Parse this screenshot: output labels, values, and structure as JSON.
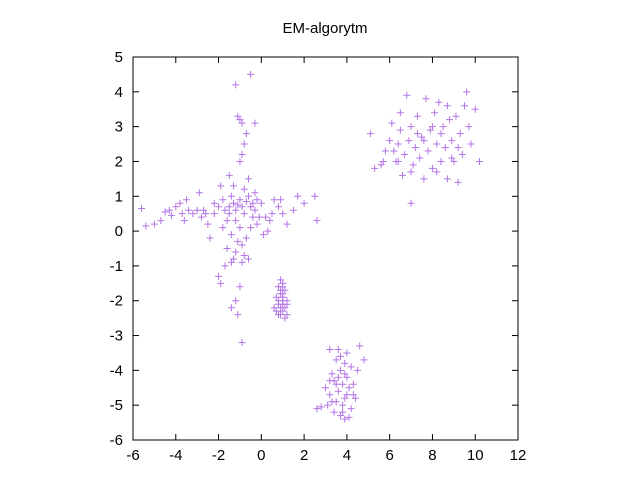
{
  "chart_data": {
    "type": "scatter",
    "title": "EM-algorytm",
    "xlabel": "",
    "ylabel": "",
    "xlim": [
      -6,
      12
    ],
    "ylim": [
      -6,
      5
    ],
    "xticks": [
      -6,
      -4,
      -2,
      0,
      2,
      4,
      6,
      8,
      10,
      12
    ],
    "yticks": [
      -6,
      -5,
      -4,
      -3,
      -2,
      -1,
      0,
      1,
      2,
      3,
      4,
      5
    ],
    "grid": false,
    "legend": "none",
    "marker": "+",
    "color": "#b475e8",
    "series": [
      {
        "points": [
          [
            -5.6,
            0.65
          ],
          [
            -5.4,
            0.15
          ],
          [
            -5.0,
            0.2
          ],
          [
            -4.7,
            0.3
          ],
          [
            -4.5,
            0.55
          ],
          [
            -4.3,
            0.6
          ],
          [
            -4.2,
            0.45
          ],
          [
            -4.0,
            0.7
          ],
          [
            -3.8,
            0.8
          ],
          [
            -3.7,
            0.5
          ],
          [
            -3.6,
            0.3
          ],
          [
            -3.4,
            0.6
          ],
          [
            -3.2,
            0.5
          ],
          [
            -3.0,
            0.6
          ],
          [
            -2.9,
            1.1
          ],
          [
            -2.8,
            0.4
          ],
          [
            -2.6,
            0.5
          ],
          [
            -2.5,
            0.2
          ],
          [
            -2.4,
            -0.2
          ],
          [
            -2.2,
            0.5
          ],
          [
            -2.0,
            0.7
          ],
          [
            -1.9,
            1.3
          ],
          [
            -1.8,
            0.9
          ],
          [
            -1.7,
            0.6
          ],
          [
            -1.6,
            0.3
          ],
          [
            -1.5,
            0.7
          ],
          [
            -1.4,
            1.0
          ],
          [
            -1.3,
            0.8
          ],
          [
            -1.2,
            0.6
          ],
          [
            -1.1,
            0.75
          ],
          [
            -1.0,
            0.9
          ],
          [
            -0.9,
            0.7
          ],
          [
            -0.8,
            0.5
          ],
          [
            -0.7,
            0.85
          ],
          [
            -0.6,
            1.0
          ],
          [
            -0.5,
            0.7
          ],
          [
            -0.4,
            0.8
          ],
          [
            -0.3,
            0.6
          ],
          [
            -0.2,
            0.9
          ],
          [
            0.0,
            0.8
          ],
          [
            0.2,
            0.4
          ],
          [
            0.4,
            0.3
          ],
          [
            0.6,
            0.9
          ],
          [
            0.8,
            0.7
          ],
          [
            1.0,
            0.5
          ],
          [
            1.2,
            0.2
          ],
          [
            1.5,
            0.6
          ],
          [
            1.7,
            1.0
          ],
          [
            2.0,
            0.8
          ],
          [
            2.5,
            1.0
          ],
          [
            2.6,
            0.3
          ],
          [
            -0.5,
            4.5
          ],
          [
            -1.2,
            4.2
          ],
          [
            -1.1,
            3.3
          ],
          [
            -1.0,
            3.2
          ],
          [
            -0.9,
            3.1
          ],
          [
            -0.3,
            3.1
          ],
          [
            -0.7,
            2.8
          ],
          [
            -0.8,
            2.5
          ],
          [
            -0.9,
            2.2
          ],
          [
            -1.0,
            2.0
          ],
          [
            -1.5,
            1.6
          ],
          [
            -1.3,
            1.3
          ],
          [
            -0.6,
            1.5
          ],
          [
            -0.8,
            1.2
          ],
          [
            -1.2,
            0.3
          ],
          [
            -1.0,
            0.1
          ],
          [
            -1.4,
            -0.1
          ],
          [
            -1.1,
            -0.3
          ],
          [
            -0.9,
            -0.4
          ],
          [
            -0.7,
            -0.2
          ],
          [
            -0.5,
            0.1
          ],
          [
            -0.2,
            0.2
          ],
          [
            0.1,
            -0.1
          ],
          [
            0.3,
            0.0
          ],
          [
            -1.6,
            -0.5
          ],
          [
            -1.3,
            -0.8
          ],
          [
            -1.4,
            -0.9
          ],
          [
            -1.7,
            -1.0
          ],
          [
            -1.9,
            -1.5
          ],
          [
            -2.0,
            -1.3
          ],
          [
            -1.0,
            -1.6
          ],
          [
            -1.2,
            -2.0
          ],
          [
            -1.4,
            -2.2
          ],
          [
            -1.1,
            -2.4
          ],
          [
            -0.9,
            -3.2
          ],
          [
            -0.8,
            -0.7
          ],
          [
            -0.6,
            -0.8
          ],
          [
            -0.9,
            -0.9
          ],
          [
            -1.2,
            -0.6
          ],
          [
            -0.3,
            1.1
          ],
          [
            -0.1,
            0.4
          ],
          [
            0.5,
            0.5
          ],
          [
            0.9,
            0.9
          ],
          [
            -2.2,
            0.8
          ],
          [
            -2.7,
            0.6
          ],
          [
            -3.5,
            0.9
          ],
          [
            -1.8,
            0.1
          ],
          [
            -1.5,
            0.5
          ],
          [
            -0.4,
            0.4
          ],
          [
            0.9,
            -1.4
          ],
          [
            1.0,
            -1.5
          ],
          [
            0.8,
            -1.6
          ],
          [
            1.1,
            -1.7
          ],
          [
            0.9,
            -1.8
          ],
          [
            1.0,
            -1.9
          ],
          [
            1.2,
            -2.0
          ],
          [
            0.8,
            -2.1
          ],
          [
            1.0,
            -2.1
          ],
          [
            0.9,
            -2.2
          ],
          [
            1.1,
            -2.2
          ],
          [
            0.7,
            -2.3
          ],
          [
            1.0,
            -2.3
          ],
          [
            0.9,
            -2.4
          ],
          [
            1.1,
            -2.5
          ],
          [
            0.8,
            -2.0
          ],
          [
            1.0,
            -1.8
          ],
          [
            0.6,
            -2.2
          ],
          [
            1.2,
            -2.4
          ],
          [
            1.0,
            -1.6
          ],
          [
            0.7,
            -1.9
          ],
          [
            1.2,
            -2.1
          ],
          [
            0.9,
            -1.7
          ],
          [
            1.0,
            -2.0
          ],
          [
            0.8,
            -2.4
          ],
          [
            3.2,
            -3.4
          ],
          [
            3.6,
            -3.4
          ],
          [
            4.0,
            -3.5
          ],
          [
            4.6,
            -3.3
          ],
          [
            3.5,
            -3.7
          ],
          [
            3.9,
            -3.8
          ],
          [
            4.2,
            -3.9
          ],
          [
            4.8,
            -3.7
          ],
          [
            3.3,
            -4.1
          ],
          [
            3.7,
            -4.0
          ],
          [
            4.0,
            -4.2
          ],
          [
            3.4,
            -4.3
          ],
          [
            3.8,
            -4.4
          ],
          [
            4.1,
            -4.5
          ],
          [
            3.6,
            -4.6
          ],
          [
            3.2,
            -4.7
          ],
          [
            3.9,
            -4.8
          ],
          [
            4.3,
            -4.7
          ],
          [
            3.5,
            -4.9
          ],
          [
            3.1,
            -5.0
          ],
          [
            2.8,
            -5.05
          ],
          [
            2.6,
            -5.1
          ],
          [
            3.8,
            -5.0
          ],
          [
            4.2,
            -5.1
          ],
          [
            3.7,
            -5.3
          ],
          [
            3.9,
            -5.4
          ],
          [
            4.1,
            -5.35
          ],
          [
            3.4,
            -5.2
          ],
          [
            4.3,
            -4.4
          ],
          [
            3.6,
            -4.2
          ],
          [
            4.5,
            -4.0
          ],
          [
            3.0,
            -4.5
          ],
          [
            3.3,
            -4.9
          ],
          [
            3.9,
            -4.1
          ],
          [
            3.7,
            -3.6
          ],
          [
            4.4,
            -4.8
          ],
          [
            3.5,
            -4.4
          ],
          [
            4.0,
            -4.7
          ],
          [
            3.8,
            -5.2
          ],
          [
            3.2,
            -4.3
          ],
          [
            5.1,
            2.8
          ],
          [
            5.3,
            1.8
          ],
          [
            5.6,
            1.9
          ],
          [
            5.8,
            2.3
          ],
          [
            6.0,
            2.6
          ],
          [
            6.1,
            3.1
          ],
          [
            6.3,
            2.0
          ],
          [
            6.4,
            2.5
          ],
          [
            6.5,
            2.9
          ],
          [
            6.6,
            1.6
          ],
          [
            6.7,
            2.2
          ],
          [
            6.8,
            3.9
          ],
          [
            6.9,
            2.6
          ],
          [
            7.0,
            3.0
          ],
          [
            7.1,
            1.9
          ],
          [
            7.2,
            2.4
          ],
          [
            7.3,
            3.3
          ],
          [
            7.4,
            2.1
          ],
          [
            7.5,
            2.7
          ],
          [
            7.6,
            1.5
          ],
          [
            7.7,
            3.8
          ],
          [
            7.8,
            2.3
          ],
          [
            7.9,
            2.9
          ],
          [
            8.0,
            1.8
          ],
          [
            8.1,
            3.4
          ],
          [
            8.2,
            2.5
          ],
          [
            8.3,
            3.7
          ],
          [
            8.4,
            2.0
          ],
          [
            8.5,
            3.0
          ],
          [
            8.6,
            2.4
          ],
          [
            8.7,
            1.5
          ],
          [
            8.8,
            3.2
          ],
          [
            8.9,
            2.6
          ],
          [
            9.0,
            2.0
          ],
          [
            9.1,
            3.3
          ],
          [
            9.2,
            1.4
          ],
          [
            9.3,
            2.8
          ],
          [
            9.4,
            2.2
          ],
          [
            9.5,
            3.6
          ],
          [
            9.6,
            4.0
          ],
          [
            9.8,
            2.5
          ],
          [
            10.0,
            3.5
          ],
          [
            10.2,
            2.0
          ],
          [
            6.2,
            2.3
          ],
          [
            7.0,
            1.7
          ],
          [
            7.6,
            2.6
          ],
          [
            8.2,
            1.7
          ],
          [
            8.9,
            2.1
          ],
          [
            6.5,
            3.4
          ],
          [
            7.3,
            2.8
          ],
          [
            8.0,
            3.0
          ],
          [
            8.7,
            3.6
          ],
          [
            9.2,
            2.4
          ],
          [
            7.0,
            0.8
          ],
          [
            5.7,
            2.0
          ],
          [
            6.4,
            2.0
          ],
          [
            8.4,
            2.8
          ],
          [
            9.7,
            3.0
          ]
        ]
      }
    ]
  }
}
